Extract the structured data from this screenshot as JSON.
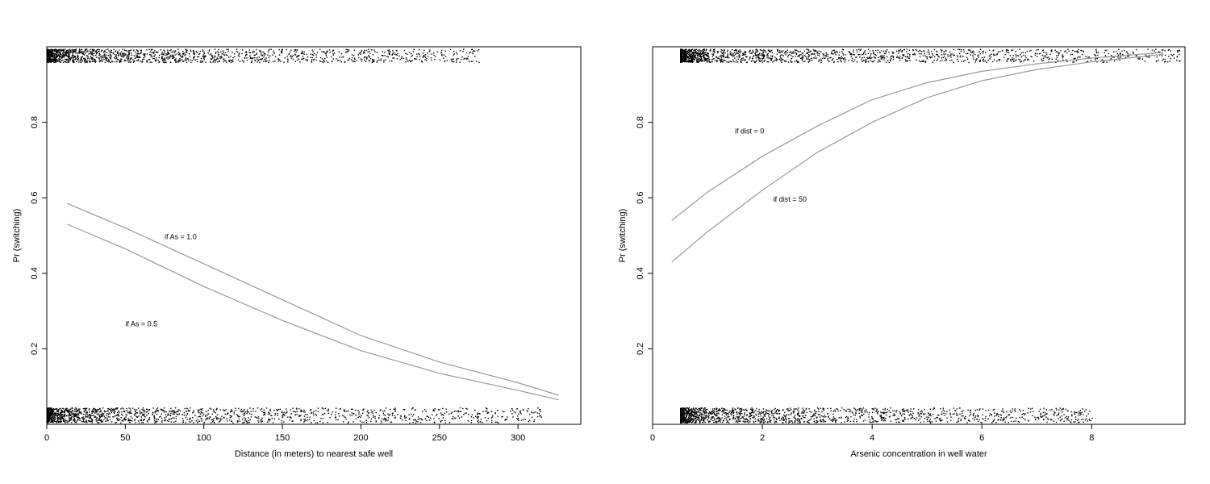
{
  "chart_data": [
    {
      "type": "line",
      "title": "",
      "xlabel": "Distance (in meters) to nearest safe well",
      "ylabel": "Pr (switching)",
      "xlim": [
        0,
        340
      ],
      "ylim": [
        0,
        1
      ],
      "xticks": [
        0,
        50,
        100,
        150,
        200,
        250,
        300
      ],
      "yticks": [
        0.2,
        0.4,
        0.6,
        0.8
      ],
      "grid": false,
      "legend": "none",
      "colors": {
        "curve": "#999999",
        "points": "#000000",
        "frame": "#000000"
      },
      "series": [
        {
          "label": "if As = 1.0",
          "x": [
            13,
            50,
            100,
            150,
            200,
            250,
            300,
            326
          ],
          "y": [
            0.585,
            0.52,
            0.425,
            0.33,
            0.235,
            0.165,
            0.11,
            0.077
          ]
        },
        {
          "label": "if As = 0.5",
          "x": [
            13,
            50,
            100,
            150,
            200,
            250,
            300,
            326
          ],
          "y": [
            0.53,
            0.465,
            0.365,
            0.275,
            0.195,
            0.135,
            0.09,
            0.065
          ]
        }
      ],
      "annotations": [
        {
          "text": "if As = 1.0",
          "x": 75,
          "y": 0.49
        },
        {
          "text": "if As = 0.5",
          "x": 50,
          "y": 0.26
        }
      ],
      "jitter_points": {
        "top_band": [
          0.96,
          0.995
        ],
        "bottom_band": [
          0.005,
          0.045
        ],
        "top_x_range": [
          0,
          275
        ],
        "bottom_x_range": [
          0,
          315
        ]
      }
    },
    {
      "type": "line",
      "title": "",
      "xlabel": "Arsenic concentration in well water",
      "ylabel": "Pr (switching)",
      "xlim": [
        0,
        9.7
      ],
      "ylim": [
        0,
        1
      ],
      "xticks": [
        0,
        2,
        4,
        6,
        8
      ],
      "yticks": [
        0.2,
        0.4,
        0.6,
        0.8
      ],
      "grid": false,
      "legend": "none",
      "colors": {
        "curve": "#999999",
        "points": "#000000",
        "frame": "#000000"
      },
      "series": [
        {
          "label": "if dist = 0",
          "x": [
            0.35,
            1,
            2,
            3,
            4,
            5,
            6,
            7,
            8,
            9.3
          ],
          "y": [
            0.54,
            0.615,
            0.71,
            0.79,
            0.86,
            0.905,
            0.935,
            0.955,
            0.97,
            0.985
          ]
        },
        {
          "label": "if dist = 50",
          "x": [
            0.35,
            1,
            2,
            3,
            4,
            5,
            6,
            7,
            8,
            9.3
          ],
          "y": [
            0.43,
            0.51,
            0.62,
            0.72,
            0.8,
            0.865,
            0.91,
            0.94,
            0.96,
            0.98
          ]
        }
      ],
      "annotations": [
        {
          "text": "if dist = 0",
          "x": 1.5,
          "y": 0.77
        },
        {
          "text": "if dist = 50",
          "x": 2.2,
          "y": 0.59
        }
      ],
      "jitter_points": {
        "top_band": [
          0.96,
          0.995
        ],
        "bottom_band": [
          0.005,
          0.045
        ],
        "top_x_range": [
          0.5,
          9.6
        ],
        "bottom_x_range": [
          0.5,
          8
        ]
      }
    }
  ]
}
